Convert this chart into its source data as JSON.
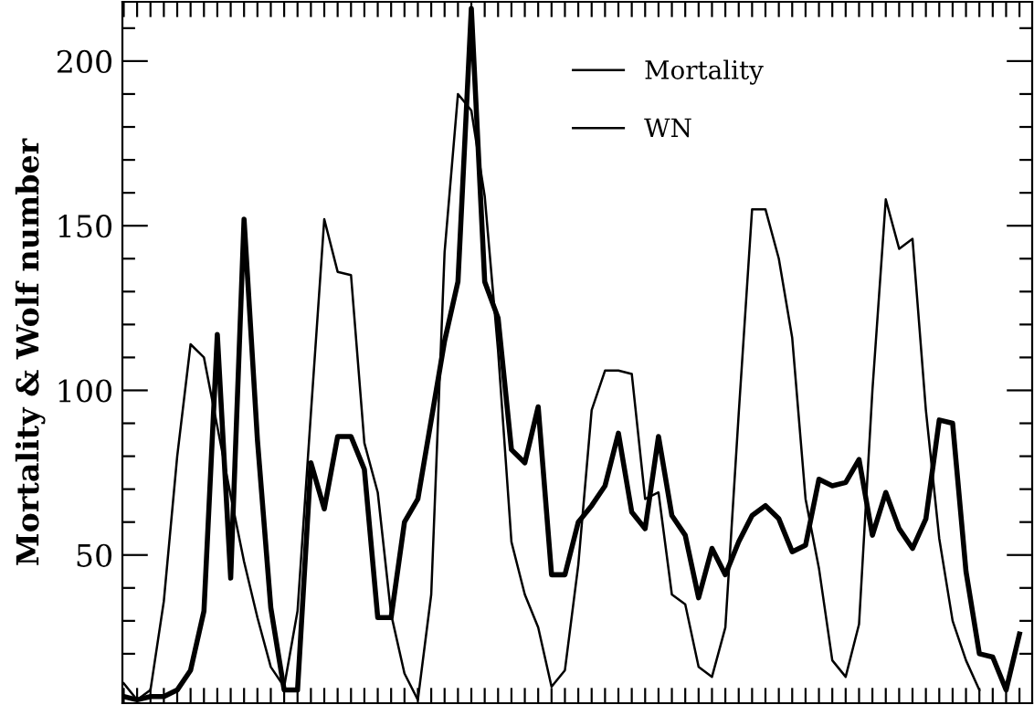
{
  "chart_data": {
    "type": "line",
    "ylabel": "Mortality & Wolf number",
    "categories": [
      null,
      null,
      null,
      null,
      null,
      null,
      null,
      null,
      null,
      null,
      null,
      null,
      null,
      null,
      null,
      null,
      null,
      null,
      null,
      null,
      null,
      null,
      null,
      null,
      null,
      null,
      null,
      null,
      null,
      null,
      null,
      null,
      null,
      null,
      null,
      null,
      null,
      null,
      null,
      null,
      null,
      null,
      null,
      null,
      null,
      null,
      null,
      null,
      null,
      null,
      null,
      null,
      null,
      null,
      null,
      null,
      null,
      null,
      null,
      null,
      null,
      null,
      null,
      null,
      null,
      null,
      null,
      null
    ],
    "series": [
      {
        "name": "Mortality",
        "color": "#000000",
        "values": [
          7,
          6,
          7,
          7,
          9,
          15,
          33,
          117,
          43,
          152,
          85,
          34,
          9,
          9,
          78,
          64,
          86,
          86,
          76,
          31,
          31,
          60,
          67,
          91,
          115,
          133,
          216,
          133,
          122,
          82,
          78,
          95,
          44,
          44,
          60,
          65,
          71,
          87,
          63,
          58,
          86,
          62,
          56,
          37,
          52,
          44,
          54,
          62,
          65,
          61,
          51,
          53,
          73,
          71,
          72,
          79,
          56,
          69,
          58,
          52,
          61,
          91,
          90,
          45,
          20,
          19,
          9,
          26
        ]
      },
      {
        "name": "WN",
        "color": "#000000",
        "values": [
          11,
          6,
          9,
          36,
          80,
          114,
          110,
          89,
          68,
          48,
          31,
          16,
          10,
          33,
          93,
          152,
          136,
          135,
          84,
          69,
          32,
          14,
          6,
          38,
          142,
          190,
          185,
          159,
          112,
          54,
          38,
          28,
          10,
          15,
          47,
          94,
          106,
          106,
          105,
          67,
          69,
          38,
          35,
          16,
          13,
          28,
          93,
          155,
          155,
          140,
          116,
          67,
          46,
          18,
          13,
          29,
          100,
          158,
          143,
          146,
          94,
          55,
          30,
          18,
          9,
          null,
          null,
          null
        ]
      }
    ],
    "ylim": [
      5,
      218
    ],
    "yticks": [
      {
        "value": 20,
        "label": null
      },
      {
        "value": 30,
        "label": null
      },
      {
        "value": 40,
        "label": null
      },
      50,
      {
        "value": 60,
        "label": null
      },
      {
        "value": 70,
        "label": null
      },
      {
        "value": 80,
        "label": null
      },
      {
        "value": 90,
        "label": null
      },
      100,
      {
        "value": 110,
        "label": null
      },
      {
        "value": 120,
        "label": null
      },
      {
        "value": 130,
        "label": null
      },
      {
        "value": 140,
        "label": null
      },
      150,
      {
        "value": 160,
        "label": null
      },
      {
        "value": 170,
        "label": null
      },
      {
        "value": 180,
        "label": null
      },
      {
        "value": 190,
        "label": null
      },
      200,
      {
        "value": 210,
        "label": null
      }
    ],
    "grid": false,
    "legend": "top",
    "tick_labels": "y",
    "marker": "none",
    "line_style": "solid"
  }
}
